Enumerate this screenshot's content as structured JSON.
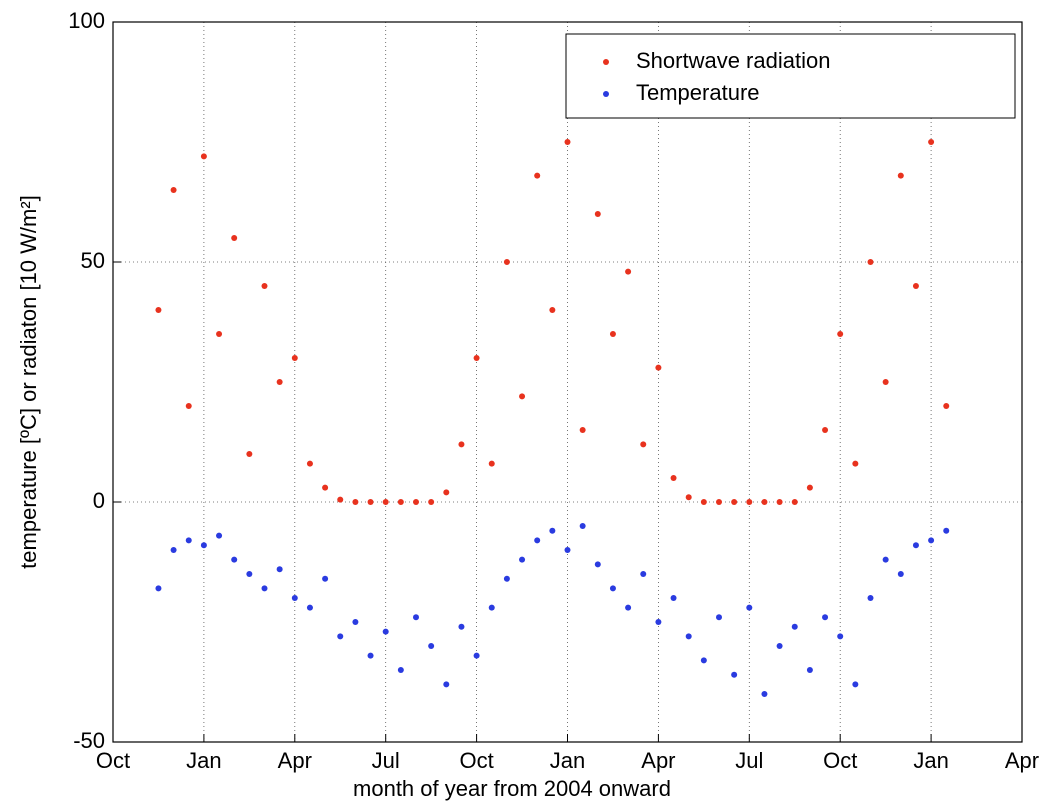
{
  "chart_data": {
    "type": "scatter",
    "xlabel": "month of year from 2004 onward",
    "ylabel": "temperature [ºC] or radiaton [10 W/m²]",
    "xlim": [
      0,
      30
    ],
    "ylim": [
      -50,
      100
    ],
    "xticks": [
      {
        "value": 0,
        "label": "Oct"
      },
      {
        "value": 3,
        "label": "Jan"
      },
      {
        "value": 6,
        "label": "Apr"
      },
      {
        "value": 9,
        "label": "Jul"
      },
      {
        "value": 12,
        "label": "Oct"
      },
      {
        "value": 15,
        "label": "Jan"
      },
      {
        "value": 18,
        "label": "Apr"
      },
      {
        "value": 21,
        "label": "Jul"
      },
      {
        "value": 24,
        "label": "Oct"
      },
      {
        "value": 27,
        "label": "Jan"
      },
      {
        "value": 30,
        "label": "Apr"
      }
    ],
    "yticks": [
      -50,
      0,
      50,
      100
    ],
    "grid": true,
    "legend": "upper right",
    "x": [
      1.5,
      2,
      2.5,
      3,
      3.5,
      4,
      4.5,
      5,
      5.5,
      6,
      6.5,
      7,
      7.5,
      8,
      8.5,
      9,
      9.5,
      10,
      10.5,
      11,
      11.5,
      12,
      12.5,
      13,
      13.5,
      14,
      14.5,
      15,
      15.5,
      16,
      16.5,
      17,
      17.5,
      18,
      18.5,
      19,
      19.5,
      20,
      20.5,
      21,
      21.5,
      22,
      22.5,
      23,
      23.5,
      24,
      24.5,
      25,
      25.5,
      26,
      26.5,
      27,
      27.5
    ],
    "series": [
      {
        "name": "Shortwave radiation",
        "color": "#e8321e",
        "values": [
          40,
          65,
          20,
          72,
          35,
          55,
          10,
          45,
          25,
          30,
          8,
          3,
          0.5,
          0,
          0,
          0,
          0,
          0,
          0,
          2,
          12,
          30,
          8,
          50,
          22,
          68,
          40,
          75,
          15,
          60,
          35,
          48,
          12,
          28,
          5,
          1,
          0,
          0,
          0,
          0,
          0,
          0,
          0,
          3,
          15,
          35,
          8,
          50,
          25,
          68,
          45,
          75,
          20
        ]
      },
      {
        "name": "Temperature",
        "color": "#2a3be0",
        "values": [
          -18,
          -10,
          -8,
          -9,
          -7,
          -12,
          -15,
          -18,
          -14,
          -20,
          -22,
          -16,
          -28,
          -25,
          -32,
          -27,
          -35,
          -24,
          -30,
          -38,
          -26,
          -32,
          -22,
          -16,
          -12,
          -8,
          -6,
          -10,
          -5,
          -13,
          -18,
          -22,
          -15,
          -25,
          -20,
          -28,
          -33,
          -24,
          -36,
          -22,
          -40,
          -30,
          -26,
          -35,
          -24,
          -28,
          -38,
          -20,
          -12,
          -15,
          -9,
          -8,
          -6
        ]
      }
    ]
  }
}
